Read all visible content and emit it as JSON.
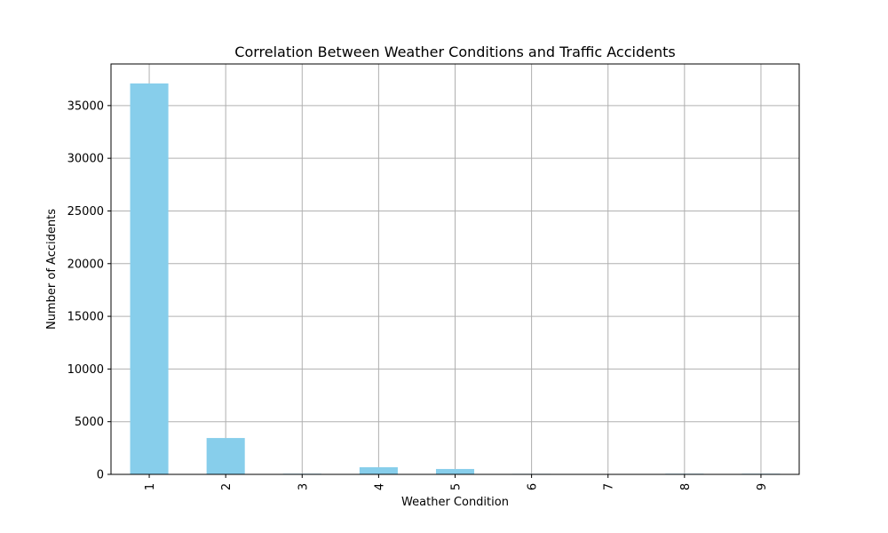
{
  "chart_data": {
    "type": "bar",
    "title": "Correlation Between Weather Conditions and Traffic Accidents",
    "xlabel": "Weather Condition",
    "ylabel": "Number of Accidents",
    "categories": [
      "1",
      "2",
      "3",
      "4",
      "5",
      "6",
      "7",
      "8",
      "9"
    ],
    "values": [
      37100,
      3450,
      60,
      680,
      510,
      50,
      15,
      60,
      60
    ],
    "ylim": [
      0,
      38950
    ],
    "yticks": [
      0,
      5000,
      10000,
      15000,
      20000,
      25000,
      30000,
      35000
    ],
    "grid": true,
    "bar_color": "#87ceeb",
    "grid_color": "#b0b0b0"
  }
}
